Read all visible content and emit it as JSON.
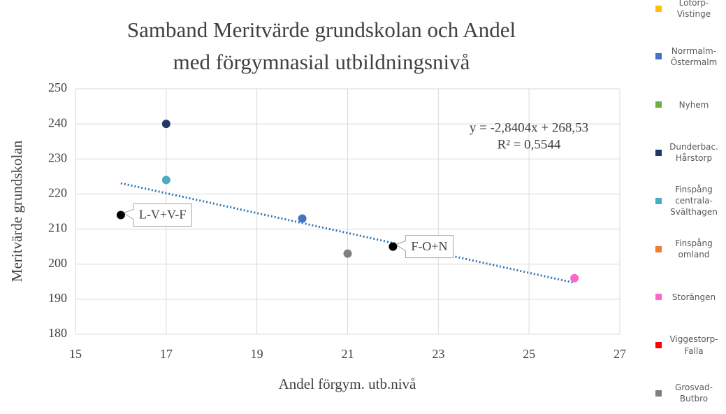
{
  "chart_data": {
    "type": "scatter",
    "title": "Samband Meritvärde grundskolan och Andel",
    "subtitle": "med förgymnasial utbildningsnivå",
    "x_label": "Andel förgym. utb.nivå",
    "y_label": "Meritvärde grundskolan",
    "xlim": [
      15,
      27
    ],
    "xticks": [
      15,
      17,
      19,
      21,
      23,
      25,
      27
    ],
    "ylim": [
      180,
      250
    ],
    "yticks": [
      180,
      190,
      200,
      210,
      220,
      230,
      240,
      250
    ],
    "grid": true,
    "legend": "right",
    "series": [
      {
        "name": "Lotorp-Vistinge",
        "color": "#ffc000",
        "x": [],
        "values": []
      },
      {
        "name": "Norrmalm-Östermalm",
        "color": "#4472c4",
        "x": [
          20
        ],
        "values": [
          213
        ]
      },
      {
        "name": "Nyhem",
        "color": "#70ad47",
        "x": [],
        "values": []
      },
      {
        "name": "Dunderbac. Hårstorp",
        "color": "#203864",
        "x": [
          17
        ],
        "values": [
          240
        ]
      },
      {
        "name": "Finspång centrala-Svälthagen",
        "color": "#4bacc6",
        "x": [
          17
        ],
        "values": [
          224
        ]
      },
      {
        "name": "Finspång omland",
        "color": "#ed7d31",
        "x": [],
        "values": []
      },
      {
        "name": "Storängen",
        "color": "#ff66cc",
        "x": [
          26
        ],
        "values": [
          196
        ]
      },
      {
        "name": "Viggestorp-Falla",
        "color": "#ff0000",
        "x": [],
        "values": []
      },
      {
        "name": "Grosvad-Butbro",
        "color": "#808080",
        "x": [
          21
        ],
        "values": [
          203
        ]
      }
    ],
    "labeled_points": [
      {
        "label": "L-V+V-F",
        "x": 16,
        "y": 214,
        "color": "#000000"
      },
      {
        "label": "F-O+N",
        "x": 22,
        "y": 205,
        "color": "#000000"
      }
    ],
    "trendline": {
      "x": [
        16,
        26
      ],
      "values": [
        223.08,
        194.68
      ],
      "color": "#2e75b6"
    },
    "annotations": [
      "y = -2,8404x + 268,53",
      "R² = 0,5544"
    ]
  }
}
